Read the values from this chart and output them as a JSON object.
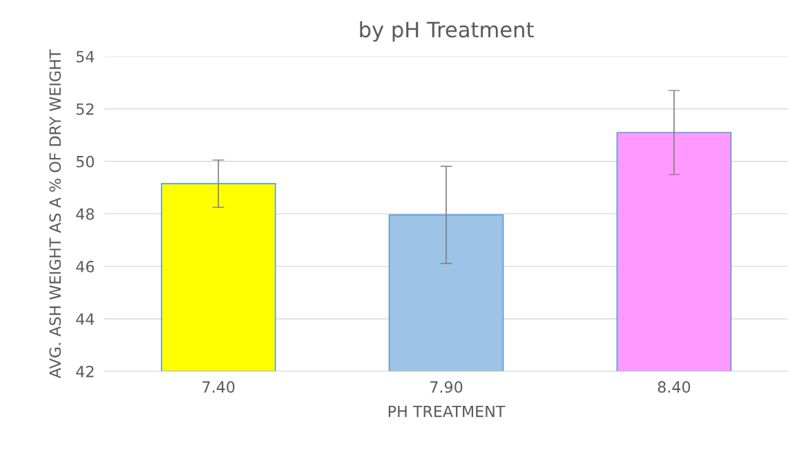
{
  "chart_data": {
    "type": "bar",
    "title": "by pH Treatment",
    "xlabel": "PH TREATMENT",
    "ylabel": "AVG. ASH WEIGHT AS A % OF DRY WEIGHT",
    "categories": [
      "7.40",
      "7.90",
      "8.40"
    ],
    "values": [
      49.15,
      47.96,
      51.1
    ],
    "colors": [
      "#ffff00",
      "#9dc3e6",
      "#ff99ff"
    ],
    "errors": [
      0.9,
      1.85,
      1.6
    ],
    "ylim": [
      42,
      54
    ],
    "yticks": [
      42,
      44,
      46,
      48,
      50,
      52,
      54
    ],
    "grid": "y"
  }
}
